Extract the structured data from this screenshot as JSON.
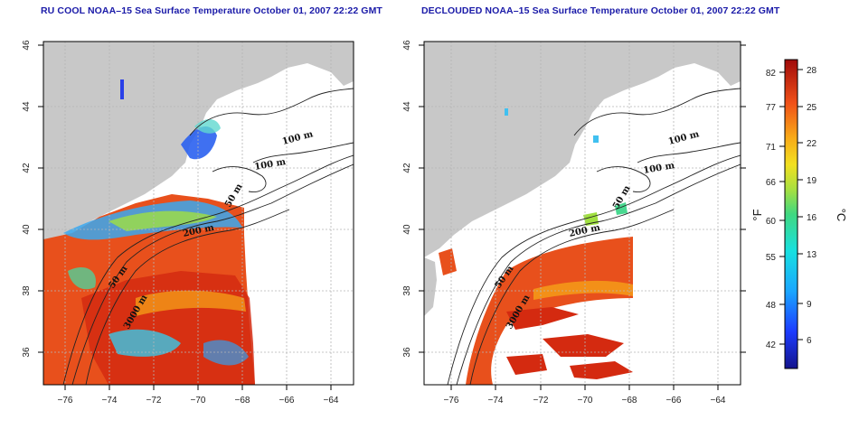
{
  "titles": {
    "left": "RU COOL NOAA–15 Sea Surface Temperature October 01, 2007 22:22 GMT",
    "right": "DECLOUDED NOAA–15 Sea Surface Temperature October 01, 2007 22:22 GMT"
  },
  "map_axes": {
    "x_ticks": [
      "−76",
      "−74",
      "−72",
      "−70",
      "−68",
      "−66",
      "−64"
    ],
    "y_ticks": [
      "36",
      "38",
      "40",
      "42",
      "44",
      "46"
    ]
  },
  "contour_labels": {
    "left": [
      "100 m",
      "100 m",
      "50 m",
      "200 m",
      "50 m",
      "3000 m"
    ],
    "right": [
      "100 m",
      "100 m",
      "50 m",
      "200 m",
      "50 m",
      "3000 m"
    ]
  },
  "colorbar": {
    "fahrenheit_ticks": [
      "82",
      "77",
      "71",
      "66",
      "60",
      "55",
      "48",
      "42"
    ],
    "celsius_ticks": [
      "28",
      "25",
      "22",
      "19",
      "16",
      "13",
      "9",
      "6"
    ],
    "unit_f": "°F",
    "unit_c": "°C"
  },
  "colors": {
    "title": "#1a1aa8",
    "land": "#c8c8c8",
    "warm": "#e8501c",
    "hot": "#d42a10"
  }
}
